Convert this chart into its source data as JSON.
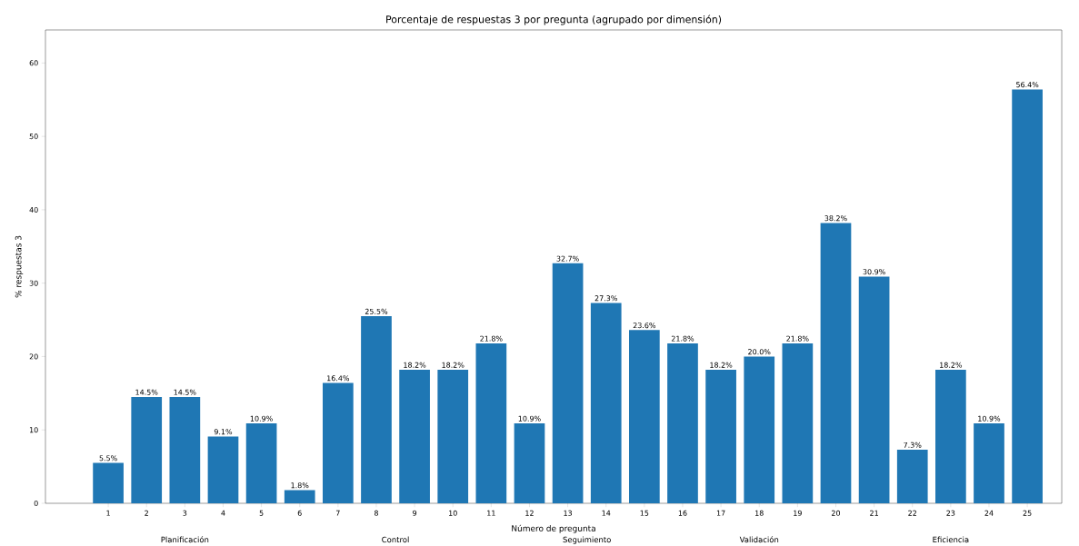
{
  "chart_data": {
    "type": "bar",
    "title": "Porcentaje de respuestas 3 por pregunta (agrupado por dimensión)",
    "xlabel": "Número de pregunta",
    "ylabel": "% respuestas 3",
    "categories": [
      "1",
      "2",
      "3",
      "4",
      "5",
      "6",
      "7",
      "8",
      "9",
      "10",
      "11",
      "12",
      "13",
      "14",
      "15",
      "16",
      "17",
      "18",
      "19",
      "20",
      "21",
      "22",
      "23",
      "24",
      "25"
    ],
    "values": [
      5.5,
      14.5,
      14.5,
      9.1,
      10.9,
      1.8,
      16.4,
      25.5,
      18.2,
      18.2,
      21.8,
      10.9,
      32.7,
      27.3,
      23.6,
      21.8,
      18.2,
      20.0,
      21.8,
      38.2,
      30.9,
      7.3,
      18.2,
      10.9,
      56.4
    ],
    "value_labels": [
      "5.5%",
      "14.5%",
      "14.5%",
      "9.1%",
      "10.9%",
      "1.8%",
      "16.4%",
      "25.5%",
      "18.2%",
      "18.2%",
      "21.8%",
      "10.9%",
      "32.7%",
      "27.3%",
      "23.6%",
      "21.8%",
      "18.2%",
      "20.0%",
      "21.8%",
      "38.2%",
      "30.9%",
      "7.3%",
      "18.2%",
      "10.9%",
      "56.4%"
    ],
    "color": "#1f77b4",
    "ylim": [
      0,
      64.5
    ],
    "yticks": [
      0,
      10,
      20,
      30,
      40,
      50,
      60
    ],
    "annotations": [
      "Planificación",
      "Control",
      "Seguimiento",
      "Validación",
      "Eficiencia"
    ],
    "grid": false
  }
}
